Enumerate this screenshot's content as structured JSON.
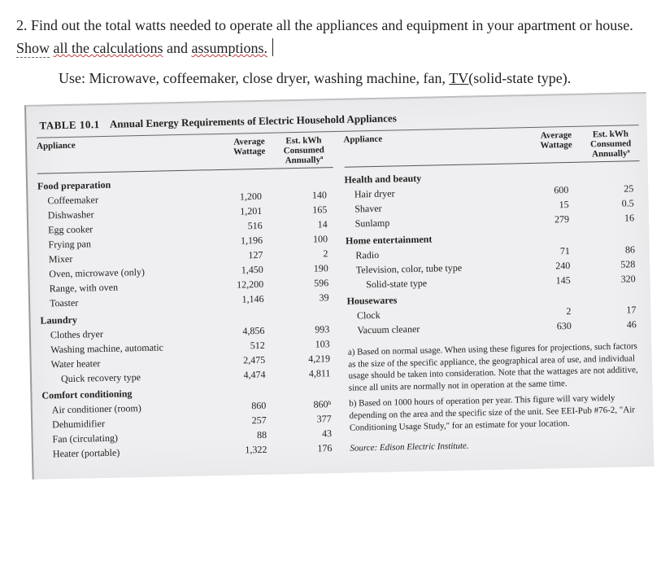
{
  "question": {
    "prefix": "2. Find out the total watts needed to operate all the appliances and equipment in your apartment or house. ",
    "show_dashed": "Show",
    "mid1": " ",
    "all_calc_wavy": "all the calculations",
    "mid2": " and ",
    "assump_wavy": "assumptions.",
    "use_prefix": "Use: Microwave, coffeemaker, close dryer, washing machine, fan, ",
    "tv_underline": "TV(",
    "use_suffix": "solid-state type)."
  },
  "table": {
    "heading_label": "TABLE 10.1",
    "heading_title": "Annual Energy Requirements of Electric Household Appliances",
    "col_head": {
      "appliance": "Appliance",
      "avg": "Average Wattage",
      "est": "Est. kWh Consumed Annuallyª"
    },
    "left": [
      {
        "cat": "Food preparation"
      },
      {
        "name": "Coffeemaker",
        "avg": "1,200",
        "est": "140",
        "indent": 1
      },
      {
        "name": "Dishwasher",
        "avg": "1,201",
        "est": "165",
        "indent": 1
      },
      {
        "name": "Egg cooker",
        "avg": "516",
        "est": "14",
        "indent": 1
      },
      {
        "name": "Frying pan",
        "avg": "1,196",
        "est": "100",
        "indent": 1
      },
      {
        "name": "Mixer",
        "avg": "127",
        "est": "2",
        "indent": 1
      },
      {
        "name": "Oven, microwave (only)",
        "avg": "1,450",
        "est": "190",
        "indent": 1
      },
      {
        "name": "Range, with oven",
        "avg": "12,200",
        "est": "596",
        "indent": 1
      },
      {
        "name": "Toaster",
        "avg": "1,146",
        "est": "39",
        "indent": 1
      },
      {
        "cat": "Laundry"
      },
      {
        "name": "Clothes dryer",
        "avg": "4,856",
        "est": "993",
        "indent": 1
      },
      {
        "name": "Washing machine, automatic",
        "avg": "512",
        "est": "103",
        "indent": 1
      },
      {
        "name": "Water heater",
        "avg": "2,475",
        "est": "4,219",
        "indent": 1
      },
      {
        "name": "Quick recovery type",
        "avg": "4,474",
        "est": "4,811",
        "indent": 2
      },
      {
        "cat": "Comfort conditioning"
      },
      {
        "name": "Air conditioner (room)",
        "avg": "860",
        "est": "860ᵇ",
        "indent": 1
      },
      {
        "name": "Dehumidifier",
        "avg": "257",
        "est": "377",
        "indent": 1
      },
      {
        "name": "Fan (circulating)",
        "avg": "88",
        "est": "43",
        "indent": 1
      },
      {
        "name": "Heater (portable)",
        "avg": "1,322",
        "est": "176",
        "indent": 1
      }
    ],
    "right": [
      {
        "cat": "Health and beauty"
      },
      {
        "name": "Hair dryer",
        "avg": "600",
        "est": "25",
        "indent": 1
      },
      {
        "name": "Shaver",
        "avg": "15",
        "est": "0.5",
        "indent": 1
      },
      {
        "name": "Sunlamp",
        "avg": "279",
        "est": "16",
        "indent": 1
      },
      {
        "cat": "Home entertainment"
      },
      {
        "name": "Radio",
        "avg": "71",
        "est": "86",
        "indent": 1
      },
      {
        "name": "Television, color, tube type",
        "avg": "240",
        "est": "528",
        "indent": 1
      },
      {
        "name": "Solid-state type",
        "avg": "145",
        "est": "320",
        "indent": 2
      },
      {
        "cat": "Housewares"
      },
      {
        "name": "Clock",
        "avg": "2",
        "est": "17",
        "indent": 1
      },
      {
        "name": "Vacuum cleaner",
        "avg": "630",
        "est": "46",
        "indent": 1
      }
    ],
    "footnotes": {
      "a": "a) Based on normal usage. When using these figures for projections, such factors as the size of the specific appliance, the geographical area of use, and individual usage should be taken into consideration. Note that the wattages are not additive, since all units are normally not in operation at the same time.",
      "b": "b) Based on 1000 hours of operation per year. This figure will vary widely depending on the area and the specific size of the unit. See EEI-Pub #76-2, \"Air Conditioning Usage Study,\" for an estimate for your location.",
      "source": "Source: Edison Electric Institute."
    }
  }
}
